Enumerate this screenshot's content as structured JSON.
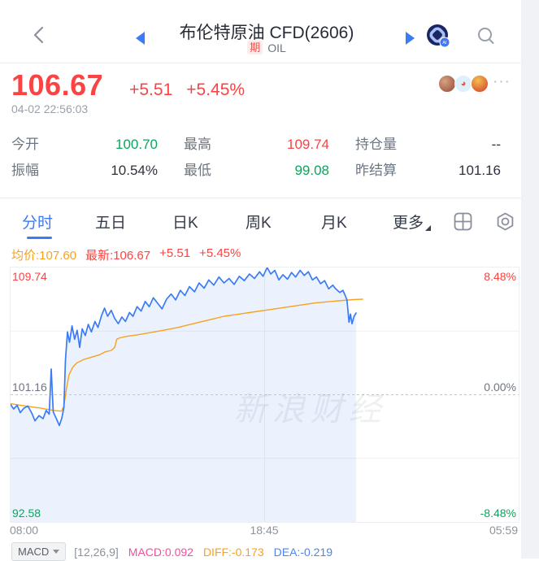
{
  "header": {
    "title": "布伦特原油 CFD(2606)",
    "badge": "期",
    "symbol": "OIL"
  },
  "quote": {
    "price": "106.67",
    "change": "+5.51",
    "change_pct": "+5.45%",
    "timestamp": "04-02 22:56:03",
    "more_label": "···",
    "weibo_glyph": "◕"
  },
  "stats": [
    {
      "label": "今开",
      "value": "100.70",
      "color": "green"
    },
    {
      "label": "最高",
      "value": "109.74",
      "color": "red"
    },
    {
      "label": "持仓量",
      "value": "--",
      "color": "dark"
    },
    {
      "label": "振幅",
      "value": "10.54%",
      "color": "dark"
    },
    {
      "label": "最低",
      "value": "99.08",
      "color": "green"
    },
    {
      "label": "昨结算",
      "value": "101.16",
      "color": "dark"
    }
  ],
  "tabs": [
    {
      "label": "分时",
      "active": true
    },
    {
      "label": "五日",
      "active": false
    },
    {
      "label": "日K",
      "active": false
    },
    {
      "label": "周K",
      "active": false
    },
    {
      "label": "月K",
      "active": false
    },
    {
      "label": "更多",
      "active": false
    }
  ],
  "chart_info": {
    "avg": "均价:107.60",
    "last": "最新:106.67",
    "change": "+5.51",
    "change_pct": "+5.45%"
  },
  "watermark": "新浪财经",
  "chart_data": {
    "type": "line",
    "title": "布伦特原油 CFD 分时走势",
    "x_axis": {
      "start": "08:00",
      "mid": "18:45",
      "end": "05:59"
    },
    "y_axis_left": [
      "109.74",
      "101.16",
      "92.58"
    ],
    "y_axis_right": [
      "8.48%",
      "0.00%",
      "-8.48%"
    ],
    "y_range": [
      92.58,
      109.74
    ],
    "baseline": 101.16,
    "layout": {
      "vline_fraction": 0.5,
      "grid": "quarters",
      "legend": "none"
    },
    "style": {
      "grid_color": "#eef0f5",
      "midline_color": "#c2c6cf",
      "fill_color": "rgba(61,123,244,0.10)",
      "price_color": "#3b7bf4",
      "avg_color": "#f7a21d"
    },
    "series": [
      {
        "name": "price",
        "points": [
          [
            0.0,
            100.5
          ],
          [
            0.006,
            100.2
          ],
          [
            0.013,
            100.45
          ],
          [
            0.019,
            99.95
          ],
          [
            0.026,
            100.25
          ],
          [
            0.034,
            100.4
          ],
          [
            0.042,
            99.9
          ],
          [
            0.048,
            99.4
          ],
          [
            0.056,
            99.75
          ],
          [
            0.064,
            99.55
          ],
          [
            0.07,
            100.1
          ],
          [
            0.076,
            99.85
          ],
          [
            0.08,
            102.9
          ],
          [
            0.084,
            100.0
          ],
          [
            0.09,
            99.55
          ],
          [
            0.096,
            99.08
          ],
          [
            0.101,
            99.6
          ],
          [
            0.105,
            100.3
          ],
          [
            0.108,
            103.5
          ],
          [
            0.112,
            105.4
          ],
          [
            0.116,
            104.7
          ],
          [
            0.121,
            105.8
          ],
          [
            0.126,
            104.9
          ],
          [
            0.131,
            105.5
          ],
          [
            0.136,
            104.35
          ],
          [
            0.141,
            105.6
          ],
          [
            0.147,
            105.15
          ],
          [
            0.153,
            105.9
          ],
          [
            0.159,
            105.4
          ],
          [
            0.166,
            106.1
          ],
          [
            0.172,
            105.7
          ],
          [
            0.179,
            106.5
          ],
          [
            0.185,
            107.0
          ],
          [
            0.191,
            106.45
          ],
          [
            0.198,
            106.85
          ],
          [
            0.205,
            106.3
          ],
          [
            0.212,
            105.95
          ],
          [
            0.219,
            106.4
          ],
          [
            0.226,
            106.1
          ],
          [
            0.234,
            106.7
          ],
          [
            0.241,
            106.45
          ],
          [
            0.249,
            107.1
          ],
          [
            0.257,
            106.8
          ],
          [
            0.265,
            107.45
          ],
          [
            0.273,
            107.1
          ],
          [
            0.281,
            107.7
          ],
          [
            0.29,
            107.3
          ],
          [
            0.298,
            106.95
          ],
          [
            0.307,
            107.6
          ],
          [
            0.316,
            107.95
          ],
          [
            0.325,
            107.55
          ],
          [
            0.334,
            108.2
          ],
          [
            0.343,
            107.85
          ],
          [
            0.352,
            108.45
          ],
          [
            0.362,
            108.1
          ],
          [
            0.371,
            108.7
          ],
          [
            0.381,
            108.35
          ],
          [
            0.39,
            108.9
          ],
          [
            0.4,
            108.55
          ],
          [
            0.41,
            109.1
          ],
          [
            0.42,
            108.7
          ],
          [
            0.43,
            109.0
          ],
          [
            0.44,
            108.6
          ],
          [
            0.45,
            109.15
          ],
          [
            0.46,
            108.85
          ],
          [
            0.47,
            109.3
          ],
          [
            0.48,
            109.0
          ],
          [
            0.49,
            109.45
          ],
          [
            0.497,
            109.15
          ],
          [
            0.505,
            109.74
          ],
          [
            0.512,
            109.3
          ],
          [
            0.52,
            109.55
          ],
          [
            0.528,
            108.9
          ],
          [
            0.536,
            109.25
          ],
          [
            0.545,
            108.95
          ],
          [
            0.553,
            109.4
          ],
          [
            0.561,
            109.1
          ],
          [
            0.57,
            109.55
          ],
          [
            0.578,
            109.2
          ],
          [
            0.586,
            109.45
          ],
          [
            0.594,
            108.9
          ],
          [
            0.602,
            109.1
          ],
          [
            0.61,
            108.65
          ],
          [
            0.618,
            108.85
          ],
          [
            0.626,
            108.3
          ],
          [
            0.634,
            108.55
          ],
          [
            0.64,
            108.3
          ],
          [
            0.648,
            108.05
          ],
          [
            0.654,
            108.2
          ],
          [
            0.658,
            107.9
          ],
          [
            0.662,
            107.55
          ],
          [
            0.666,
            106.05
          ],
          [
            0.669,
            106.6
          ],
          [
            0.672,
            105.95
          ],
          [
            0.676,
            106.45
          ],
          [
            0.68,
            106.67
          ]
        ]
      },
      {
        "name": "avg",
        "points": [
          [
            0.0,
            100.55
          ],
          [
            0.03,
            100.4
          ],
          [
            0.06,
            100.25
          ],
          [
            0.085,
            100.1
          ],
          [
            0.1,
            100.05
          ],
          [
            0.105,
            100.4
          ],
          [
            0.11,
            101.6
          ],
          [
            0.115,
            102.5
          ],
          [
            0.122,
            103.0
          ],
          [
            0.13,
            103.3
          ],
          [
            0.145,
            103.55
          ],
          [
            0.16,
            103.7
          ],
          [
            0.175,
            103.85
          ],
          [
            0.186,
            104.05
          ],
          [
            0.198,
            104.15
          ],
          [
            0.205,
            104.35
          ],
          [
            0.209,
            104.9
          ],
          [
            0.215,
            105.0
          ],
          [
            0.23,
            105.1
          ],
          [
            0.25,
            105.2
          ],
          [
            0.275,
            105.35
          ],
          [
            0.3,
            105.5
          ],
          [
            0.33,
            105.7
          ],
          [
            0.36,
            105.95
          ],
          [
            0.39,
            106.2
          ],
          [
            0.42,
            106.45
          ],
          [
            0.45,
            106.6
          ],
          [
            0.48,
            106.75
          ],
          [
            0.51,
            106.9
          ],
          [
            0.54,
            107.05
          ],
          [
            0.57,
            107.2
          ],
          [
            0.6,
            107.35
          ],
          [
            0.63,
            107.45
          ],
          [
            0.655,
            107.52
          ],
          [
            0.675,
            107.58
          ],
          [
            0.693,
            107.6
          ]
        ]
      }
    ]
  },
  "indicator_bar": {
    "selector": "MACD",
    "params": "[12,26,9]",
    "macd": "MACD:0.092",
    "diff": "DIFF:-0.173",
    "dea": "DEA:-0.219"
  },
  "colors": {
    "up_red": "#fa4343",
    "down_green": "#0ba65c",
    "accent_blue": "#3b7bf4",
    "avg_orange": "#f7a21d",
    "macd_magenta": "#f0509e",
    "dea_blue": "#4a86ee"
  }
}
